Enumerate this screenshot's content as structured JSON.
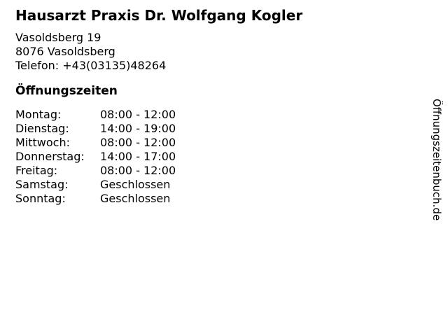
{
  "page": {
    "background_color": "#ffffff",
    "text_color": "#000000"
  },
  "header": {
    "title": "Hausarzt Praxis Dr. Wolfgang Kogler",
    "address_line1": "Vasoldsberg 19",
    "address_line2": "8076 Vasoldsberg",
    "phone": "Telefon: +43(03135)48264"
  },
  "opening_hours": {
    "heading": "Öffnungszeiten",
    "rows": [
      {
        "day": "Montag:",
        "hours": "08:00 - 12:00"
      },
      {
        "day": "Dienstag:",
        "hours": "14:00 - 19:00"
      },
      {
        "day": "Mittwoch:",
        "hours": "08:00 - 12:00"
      },
      {
        "day": "Donnerstag:",
        "hours": "14:00 - 17:00"
      },
      {
        "day": "Freitag:",
        "hours": "08:00 - 12:00"
      },
      {
        "day": "Samstag:",
        "hours": "Geschlossen"
      },
      {
        "day": "Sonntag:",
        "hours": "Geschlossen"
      }
    ]
  },
  "branding": {
    "vertical_label": "Öffnungszeitenbuch.de"
  }
}
